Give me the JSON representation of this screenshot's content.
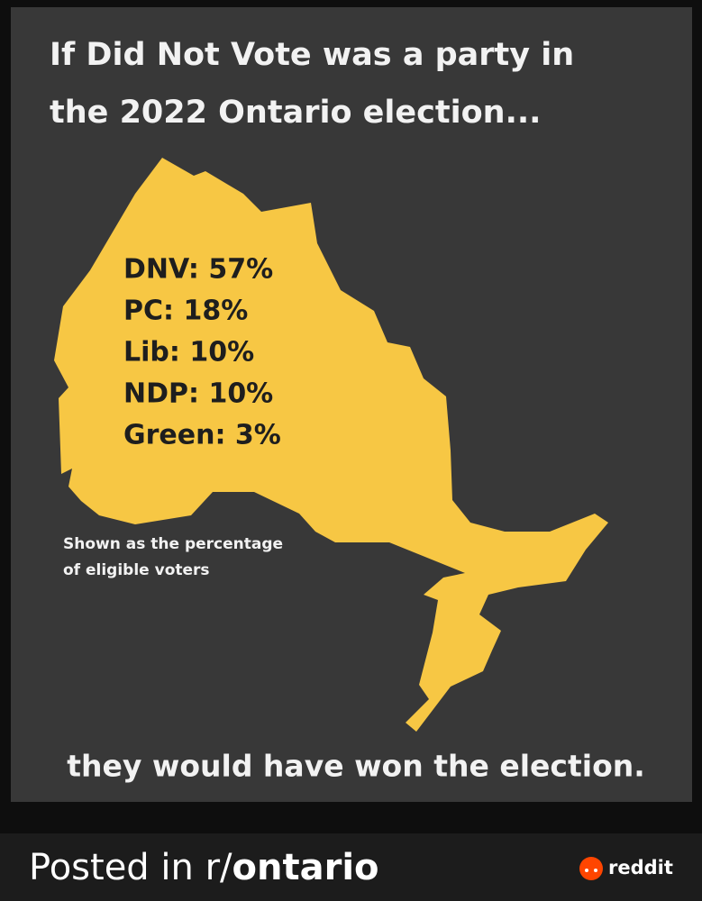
{
  "header": {
    "title": [
      "If Did Not Vote was a party in",
      "the 2022 Ontario election..."
    ]
  },
  "results": [
    "DNV: 57%",
    "PC: 18%",
    "Lib: 10%",
    "NDP: 10%",
    "Green: 3%"
  ],
  "note": [
    "Shown as the percentage",
    "of eligible voters"
  ],
  "conclusion": "they would have won the election.",
  "footer": {
    "posted_prefix": "Posted in r/",
    "subreddit": "ontario",
    "brand": "reddit"
  }
}
